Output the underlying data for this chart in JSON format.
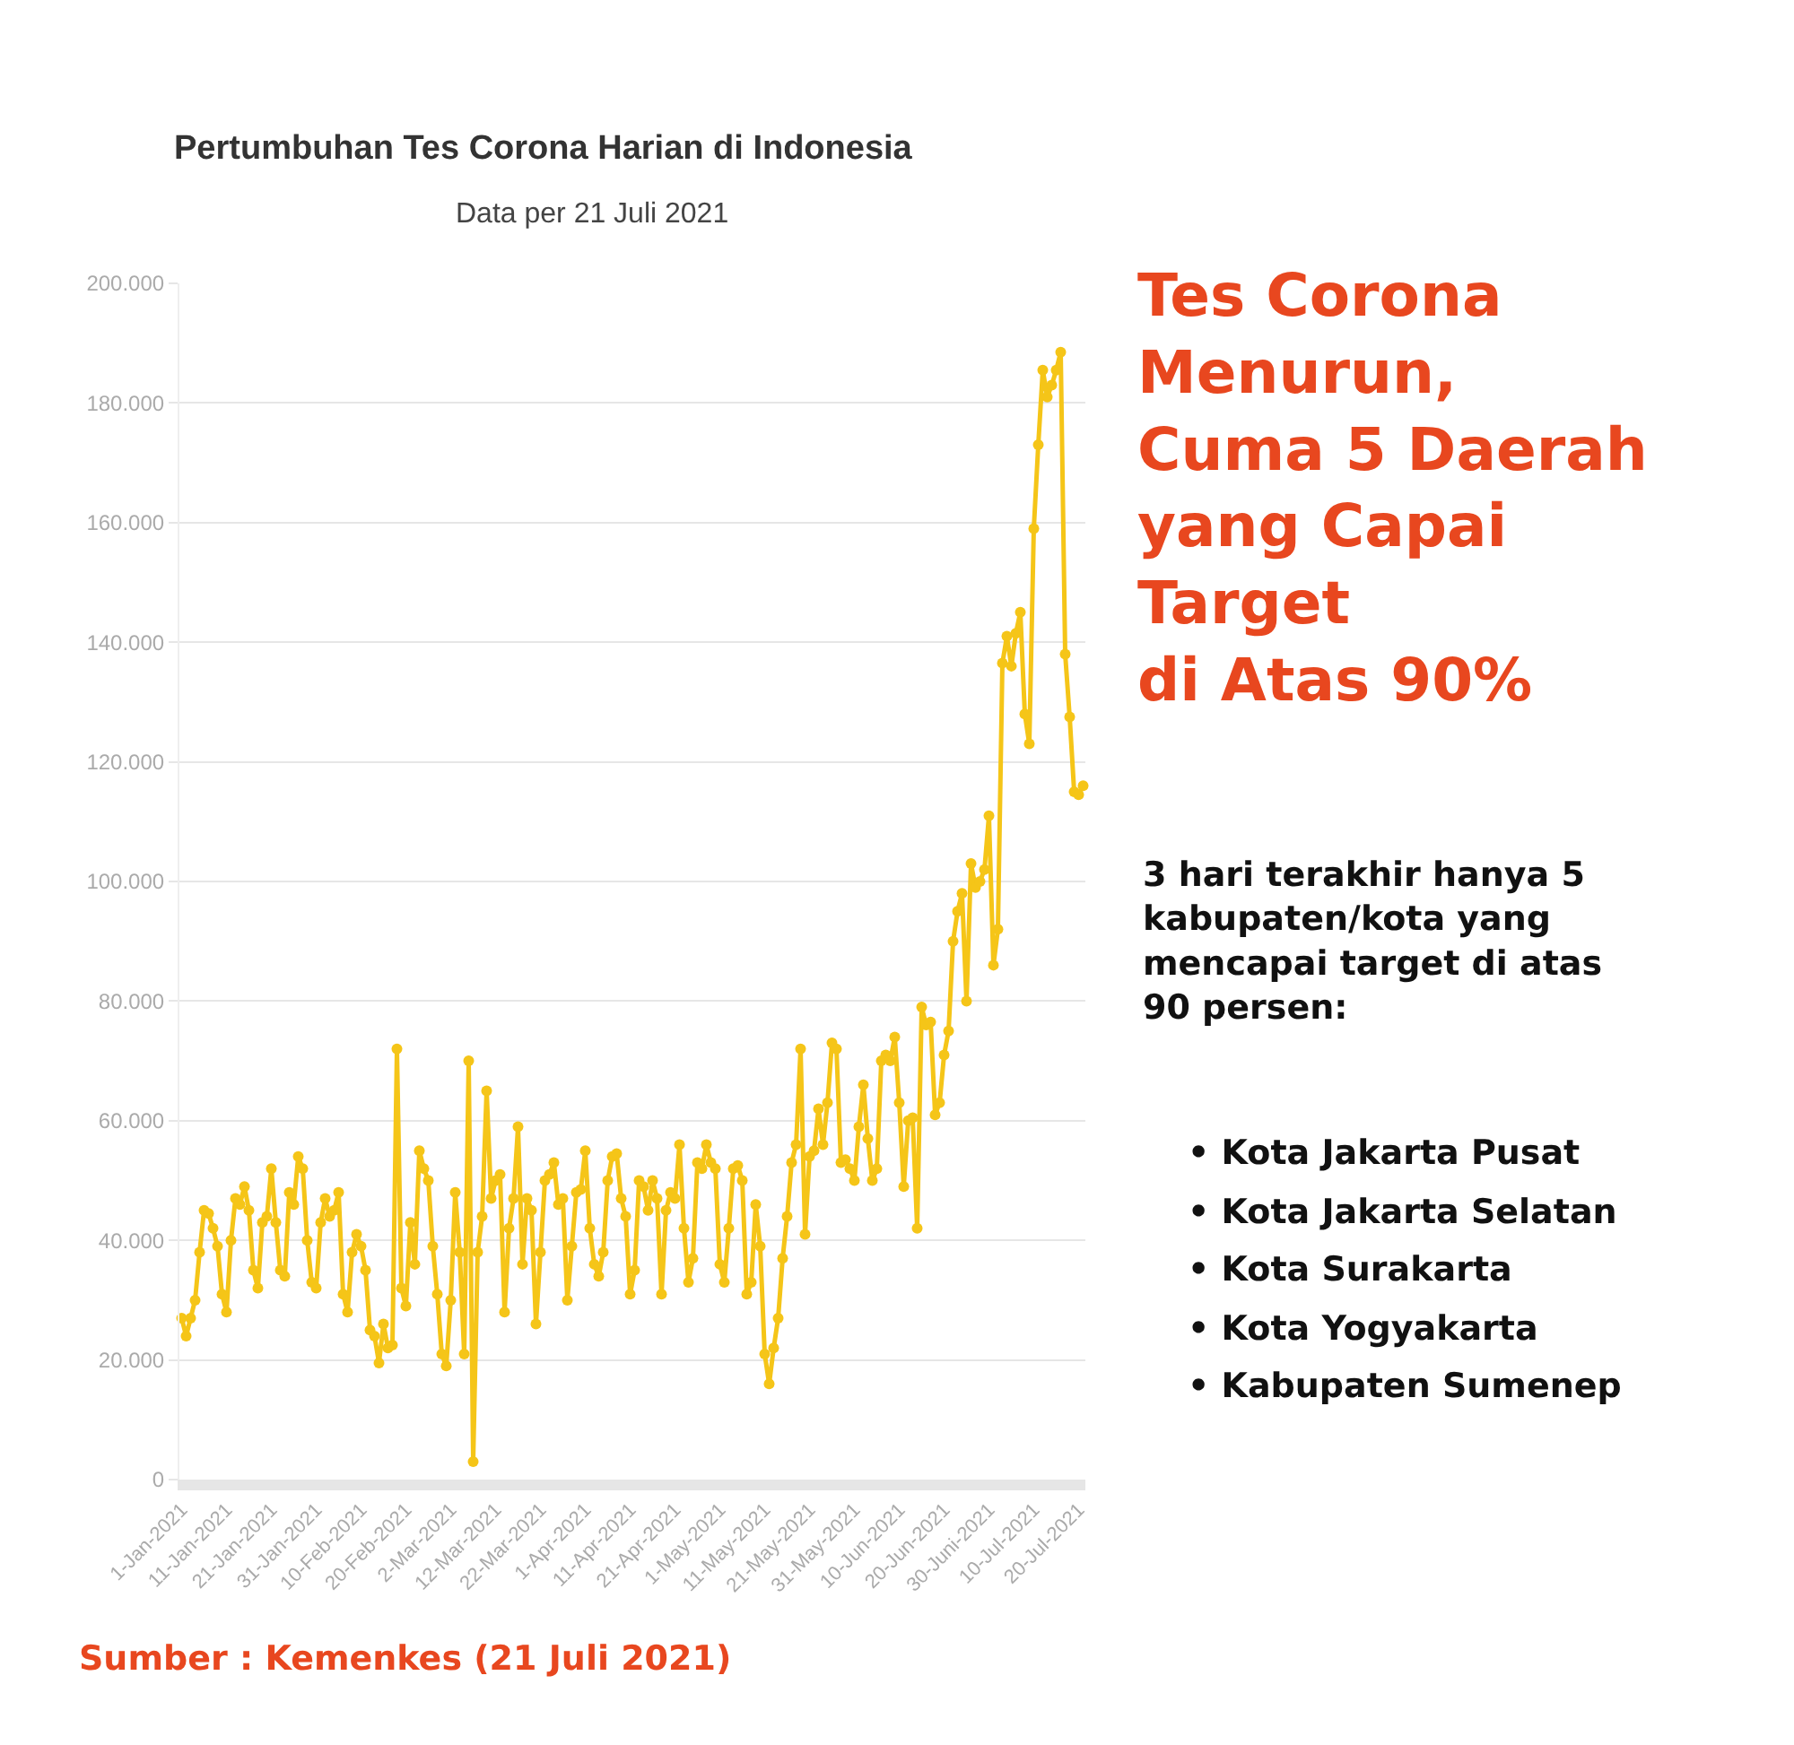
{
  "chart_data": {
    "type": "line",
    "title": "Pertumbuhan Tes Corona Harian di Indonesia",
    "subtitle": "Data per 21 Juli 2021",
    "categories": [
      "1-Jan-2021",
      null,
      null,
      null,
      null,
      null,
      null,
      null,
      null,
      null,
      "11-Jan-2021",
      null,
      null,
      null,
      null,
      null,
      null,
      null,
      null,
      null,
      "21-Jan-2021",
      null,
      null,
      null,
      null,
      null,
      null,
      null,
      null,
      null,
      "31-Jan-2021",
      null,
      null,
      null,
      null,
      null,
      null,
      null,
      null,
      null,
      "10-Feb-2021",
      null,
      null,
      null,
      null,
      null,
      null,
      null,
      null,
      null,
      "20-Feb-2021",
      null,
      null,
      null,
      null,
      null,
      null,
      null,
      null,
      null,
      "2-Mar-2021",
      null,
      null,
      null,
      null,
      null,
      null,
      null,
      null,
      null,
      "12-Mar-2021",
      null,
      null,
      null,
      null,
      null,
      null,
      null,
      null,
      null,
      "22-Mar-2021",
      null,
      null,
      null,
      null,
      null,
      null,
      null,
      null,
      null,
      "1-Apr-2021",
      null,
      null,
      null,
      null,
      null,
      null,
      null,
      null,
      null,
      "11-Apr-2021",
      null,
      null,
      null,
      null,
      null,
      null,
      null,
      null,
      null,
      "21-Apr-2021",
      null,
      null,
      null,
      null,
      null,
      null,
      null,
      null,
      null,
      "1-May-2021",
      null,
      null,
      null,
      null,
      null,
      null,
      null,
      null,
      null,
      "11-May-2021",
      null,
      null,
      null,
      null,
      null,
      null,
      null,
      null,
      null,
      "21-May-2021",
      null,
      null,
      null,
      null,
      null,
      null,
      null,
      null,
      null,
      "31-May-2021",
      null,
      null,
      null,
      null,
      null,
      null,
      null,
      null,
      null,
      "10-Jun-2021",
      null,
      null,
      null,
      null,
      null,
      null,
      null,
      null,
      null,
      "20-Jun-2021",
      null,
      null,
      null,
      null,
      null,
      null,
      null,
      null,
      null,
      "30-Juni-2021",
      null,
      null,
      null,
      null,
      null,
      null,
      null,
      null,
      null,
      "10-Jul-2021",
      null,
      null,
      null,
      null,
      null,
      null,
      null,
      null,
      null,
      "20-Jul-2021",
      null
    ],
    "series": [
      {
        "color": "#f5c518",
        "values": [
          27000,
          24000,
          27000,
          30000,
          38000,
          45000,
          44500,
          42000,
          39000,
          31000,
          28000,
          40000,
          47000,
          46000,
          49000,
          45000,
          35000,
          32000,
          43000,
          44000,
          52000,
          43000,
          35000,
          34000,
          48000,
          46000,
          54000,
          52000,
          40000,
          33000,
          32000,
          43000,
          47000,
          44000,
          45000,
          48000,
          31000,
          28000,
          38000,
          41000,
          39000,
          35000,
          25000,
          24000,
          19500,
          26000,
          22000,
          22500,
          72000,
          32000,
          29000,
          43000,
          36000,
          55000,
          52000,
          50000,
          39000,
          31000,
          21000,
          19000,
          30000,
          48000,
          38000,
          21000,
          70000,
          3000,
          38000,
          44000,
          65000,
          47000,
          50000,
          51000,
          28000,
          42000,
          47000,
          59000,
          36000,
          47000,
          45000,
          26000,
          38000,
          50000,
          51000,
          53000,
          46000,
          47000,
          30000,
          39000,
          48000,
          48500,
          55000,
          42000,
          36000,
          34000,
          38000,
          50000,
          54000,
          54500,
          47000,
          44000,
          31000,
          35000,
          50000,
          49000,
          45000,
          50000,
          47000,
          31000,
          45000,
          48000,
          47000,
          56000,
          42000,
          33000,
          37000,
          53000,
          52000,
          56000,
          53000,
          52000,
          36000,
          33000,
          42000,
          52000,
          52500,
          50000,
          31000,
          33000,
          46000,
          39000,
          21000,
          16000,
          22000,
          27000,
          37000,
          44000,
          53000,
          56000,
          72000,
          41000,
          54000,
          55000,
          62000,
          56000,
          63000,
          73000,
          72000,
          53000,
          53500,
          52000,
          50000,
          59000,
          66000,
          57000,
          50000,
          52000,
          70000,
          71000,
          70000,
          74000,
          63000,
          49000,
          60000,
          60500,
          42000,
          79000,
          76000,
          76500,
          61000,
          63000,
          71000,
          75000,
          90000,
          95000,
          98000,
          80000,
          103000,
          99000,
          100000,
          102000,
          111000,
          86000,
          92000,
          136500,
          141000,
          136000,
          141500,
          145000,
          128000,
          123000,
          159000,
          173000,
          185500,
          181000,
          183000,
          185500,
          188500,
          138000,
          127500,
          115000,
          114500,
          116000
        ]
      }
    ],
    "ylim": [
      0,
      200000
    ],
    "yticks": [
      {
        "value": 0,
        "label": "0"
      },
      {
        "value": 20000,
        "label": "20.000"
      },
      {
        "value": 40000,
        "label": "40.000"
      },
      {
        "value": 60000,
        "label": "60.000"
      },
      {
        "value": 80000,
        "label": "80.000"
      },
      {
        "value": 100000,
        "label": "100.000"
      },
      {
        "value": 120000,
        "label": "120.000"
      },
      {
        "value": 140000,
        "label": "140.000"
      },
      {
        "value": 160000,
        "label": "160.000"
      },
      {
        "value": 180000,
        "label": "180.000"
      },
      {
        "value": 200000,
        "label": "200.000"
      }
    ],
    "grid": "y",
    "marker": "circle",
    "line_style": "solid",
    "annotations": [
      "Tes Corona\nMenurun,\nCuma 5 Daerah\nyang Capai\nTarget\ndi Atas 90%",
      "3 hari terakhir hanya 5\nkabupaten/kota yang\nmencapai target di atas\n90 persen:",
      "• Kota Jakarta Pusat",
      "• Kota Jakarta Selatan",
      "• Kota Surakarta",
      "• Kota Yogyakarta",
      "• Kabupaten Sumenep",
      "Sumber : Kemenkes (21 Juli 2021)"
    ]
  }
}
